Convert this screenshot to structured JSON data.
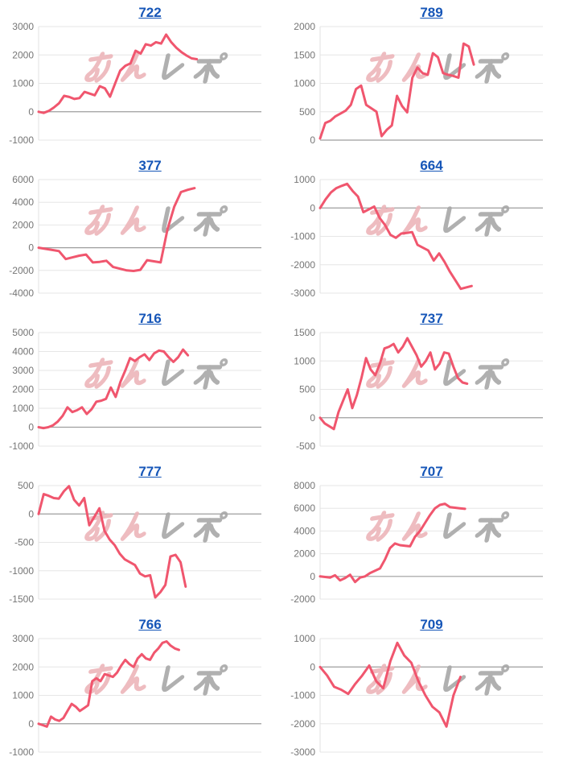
{
  "page": {
    "background": "#ffffff"
  },
  "watermark": {
    "pink_text": "みん",
    "gray_text": "レポ",
    "pink_color": "#edb5ba",
    "gray_color": "#a8a8a8"
  },
  "colors": {
    "line": "#f0566e",
    "title_link": "#1656b8",
    "tick_label": "#757575",
    "gridline": "#e6e6e6",
    "zero_line": "#9e9e9e",
    "axis_line": "#e2e2e2"
  },
  "chart_data": [
    {
      "type": "line",
      "title": "722",
      "ylim": [
        -1000,
        3000
      ],
      "yticks": [
        3000,
        2000,
        1000,
        0,
        -1000
      ],
      "x_span": 0.71,
      "values": [
        0,
        -40,
        30,
        150,
        300,
        560,
        520,
        450,
        480,
        700,
        640,
        580,
        900,
        820,
        530,
        1000,
        1450,
        1620,
        1700,
        2150,
        2050,
        2380,
        2330,
        2450,
        2400,
        2720,
        2450,
        2250,
        2100,
        1980,
        1880,
        1850
      ]
    },
    {
      "type": "line",
      "title": "789",
      "ylim": [
        0,
        2000
      ],
      "yticks": [
        2000,
        1500,
        1000,
        500,
        0
      ],
      "x_span": 0.69,
      "values": [
        30,
        300,
        340,
        420,
        470,
        520,
        620,
        900,
        960,
        620,
        560,
        500,
        70,
        180,
        260,
        780,
        600,
        490,
        1100,
        1280,
        1180,
        1150,
        1530,
        1460,
        1180,
        1150,
        1130,
        1100,
        1700,
        1650,
        1330
      ]
    },
    {
      "type": "line",
      "title": "377",
      "ylim": [
        -4000,
        6000
      ],
      "yticks": [
        6000,
        4000,
        2000,
        0,
        -2000,
        -4000
      ],
      "x_span": 0.7,
      "values": [
        0,
        -100,
        -200,
        -300,
        -1000,
        -850,
        -700,
        -600,
        -1300,
        -1250,
        -1150,
        -1700,
        -1850,
        -2000,
        -2050,
        -1950,
        -1100,
        -1200,
        -1300,
        1600,
        3600,
        4900,
        5100,
        5250
      ]
    },
    {
      "type": "line",
      "title": "664",
      "ylim": [
        -3000,
        1000
      ],
      "yticks": [
        1000,
        0,
        -1000,
        -2000,
        -3000
      ],
      "x_span": 0.68,
      "values": [
        0,
        300,
        550,
        700,
        780,
        850,
        600,
        400,
        -150,
        -50,
        50,
        -350,
        -600,
        -950,
        -1050,
        -900,
        -880,
        -850,
        -1300,
        -1400,
        -1500,
        -1850,
        -1600,
        -1900,
        -2250,
        -2550,
        -2850,
        -2800,
        -2750
      ]
    },
    {
      "type": "line",
      "title": "716",
      "ylim": [
        -1000,
        5000
      ],
      "yticks": [
        5000,
        4000,
        3000,
        2000,
        1000,
        0,
        -1000
      ],
      "x_span": 0.67,
      "values": [
        0,
        -50,
        0,
        100,
        300,
        600,
        1050,
        800,
        900,
        1050,
        700,
        950,
        1350,
        1400,
        1500,
        2100,
        1600,
        2400,
        3000,
        3650,
        3500,
        3700,
        3850,
        3550,
        3900,
        4050,
        4000,
        3700,
        3450,
        3700,
        4100,
        3800
      ]
    },
    {
      "type": "line",
      "title": "737",
      "ylim": [
        -500,
        1500
      ],
      "yticks": [
        1500,
        1000,
        500,
        0,
        -500
      ],
      "x_span": 0.66,
      "values": [
        0,
        -100,
        -150,
        -200,
        100,
        300,
        500,
        170,
        400,
        700,
        1050,
        850,
        750,
        950,
        1220,
        1250,
        1300,
        1150,
        1250,
        1400,
        1250,
        1100,
        900,
        1000,
        1150,
        850,
        950,
        1150,
        1130,
        900,
        700,
        620,
        600
      ]
    },
    {
      "type": "line",
      "title": "777",
      "ylim": [
        -1500,
        500
      ],
      "yticks": [
        500,
        0,
        -500,
        -1000,
        -1500
      ],
      "x_span": 0.66,
      "values": [
        0,
        350,
        320,
        280,
        270,
        400,
        490,
        250,
        150,
        280,
        -200,
        -50,
        100,
        -300,
        -450,
        -550,
        -700,
        -800,
        -850,
        -900,
        -1050,
        -1100,
        -1080,
        -1470,
        -1380,
        -1250,
        -750,
        -720,
        -850,
        -1280
      ]
    },
    {
      "type": "line",
      "title": "707",
      "ylim": [
        -2000,
        8000
      ],
      "yticks": [
        8000,
        6000,
        4000,
        2000,
        0,
        -2000
      ],
      "x_span": 0.65,
      "values": [
        0,
        -50,
        -100,
        100,
        -350,
        -150,
        150,
        -500,
        -100,
        0,
        300,
        500,
        700,
        1500,
        2500,
        2900,
        2750,
        2700,
        2650,
        3500,
        4000,
        4700,
        5400,
        6000,
        6300,
        6400,
        6100,
        6050,
        6000,
        5950
      ]
    },
    {
      "type": "line",
      "title": "766",
      "ylim": [
        -1000,
        3000
      ],
      "yticks": [
        3000,
        2000,
        1000,
        0,
        -1000
      ],
      "x_span": 0.63,
      "values": [
        0,
        -50,
        -100,
        250,
        150,
        100,
        200,
        450,
        700,
        600,
        450,
        550,
        650,
        1500,
        1600,
        1500,
        1750,
        1700,
        1650,
        1800,
        2050,
        2250,
        2100,
        2000,
        2300,
        2450,
        2300,
        2250,
        2500,
        2650,
        2850,
        2900,
        2750,
        2650,
        2600
      ]
    },
    {
      "type": "line",
      "title": "709",
      "ylim": [
        -3000,
        1000
      ],
      "yticks": [
        1000,
        0,
        -1000,
        -2000,
        -3000
      ],
      "x_span": 0.63,
      "values": [
        0,
        -300,
        -700,
        -800,
        -950,
        -600,
        -300,
        50,
        -500,
        -750,
        200,
        850,
        400,
        150,
        -500,
        -1000,
        -1400,
        -1600,
        -2100,
        -1000,
        -350
      ]
    }
  ]
}
